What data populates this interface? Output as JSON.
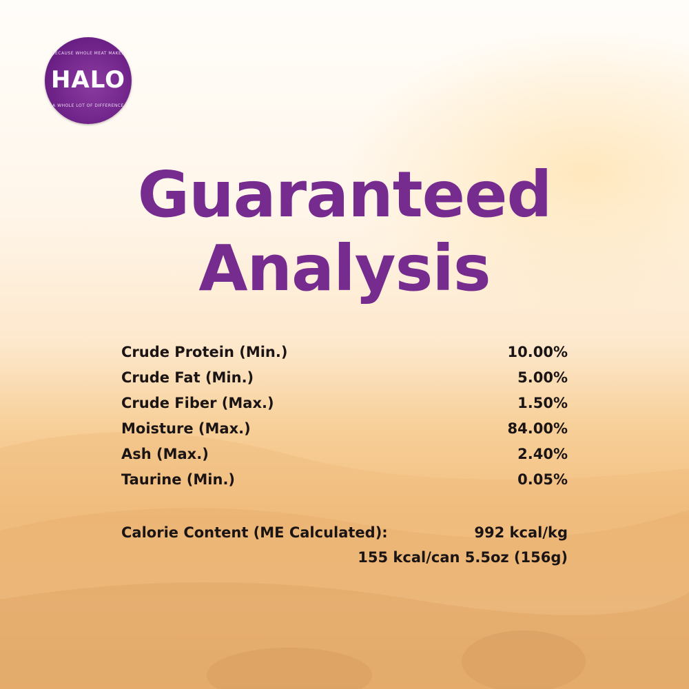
{
  "brand": {
    "logo_text": "HALO",
    "logo_top_arc": "BECAUSE WHOLE MEAT MAKES",
    "logo_bottom_arc": "A WHOLE LOT OF DIFFERENCE",
    "color": "#762b8f"
  },
  "title": {
    "line1": "Guaranteed",
    "line2": "Analysis"
  },
  "analysis": [
    {
      "label": "Crude Protein (Min.)",
      "value": "10.00%"
    },
    {
      "label": "Crude Fat (Min.)",
      "value": "5.00%"
    },
    {
      "label": "Crude Fiber (Max.)",
      "value": "1.50%"
    },
    {
      "label": "Moisture (Max.)",
      "value": "84.00%"
    },
    {
      "label": "Ash (Max.)",
      "value": "2.40%"
    },
    {
      "label": "Taurine (Min.)",
      "value": "0.05%"
    }
  ],
  "calorie": {
    "label": "Calorie Content (ME Calculated):",
    "per_kg": "992 kcal/kg",
    "per_can": "155 kcal/can 5.5oz (156g)"
  }
}
